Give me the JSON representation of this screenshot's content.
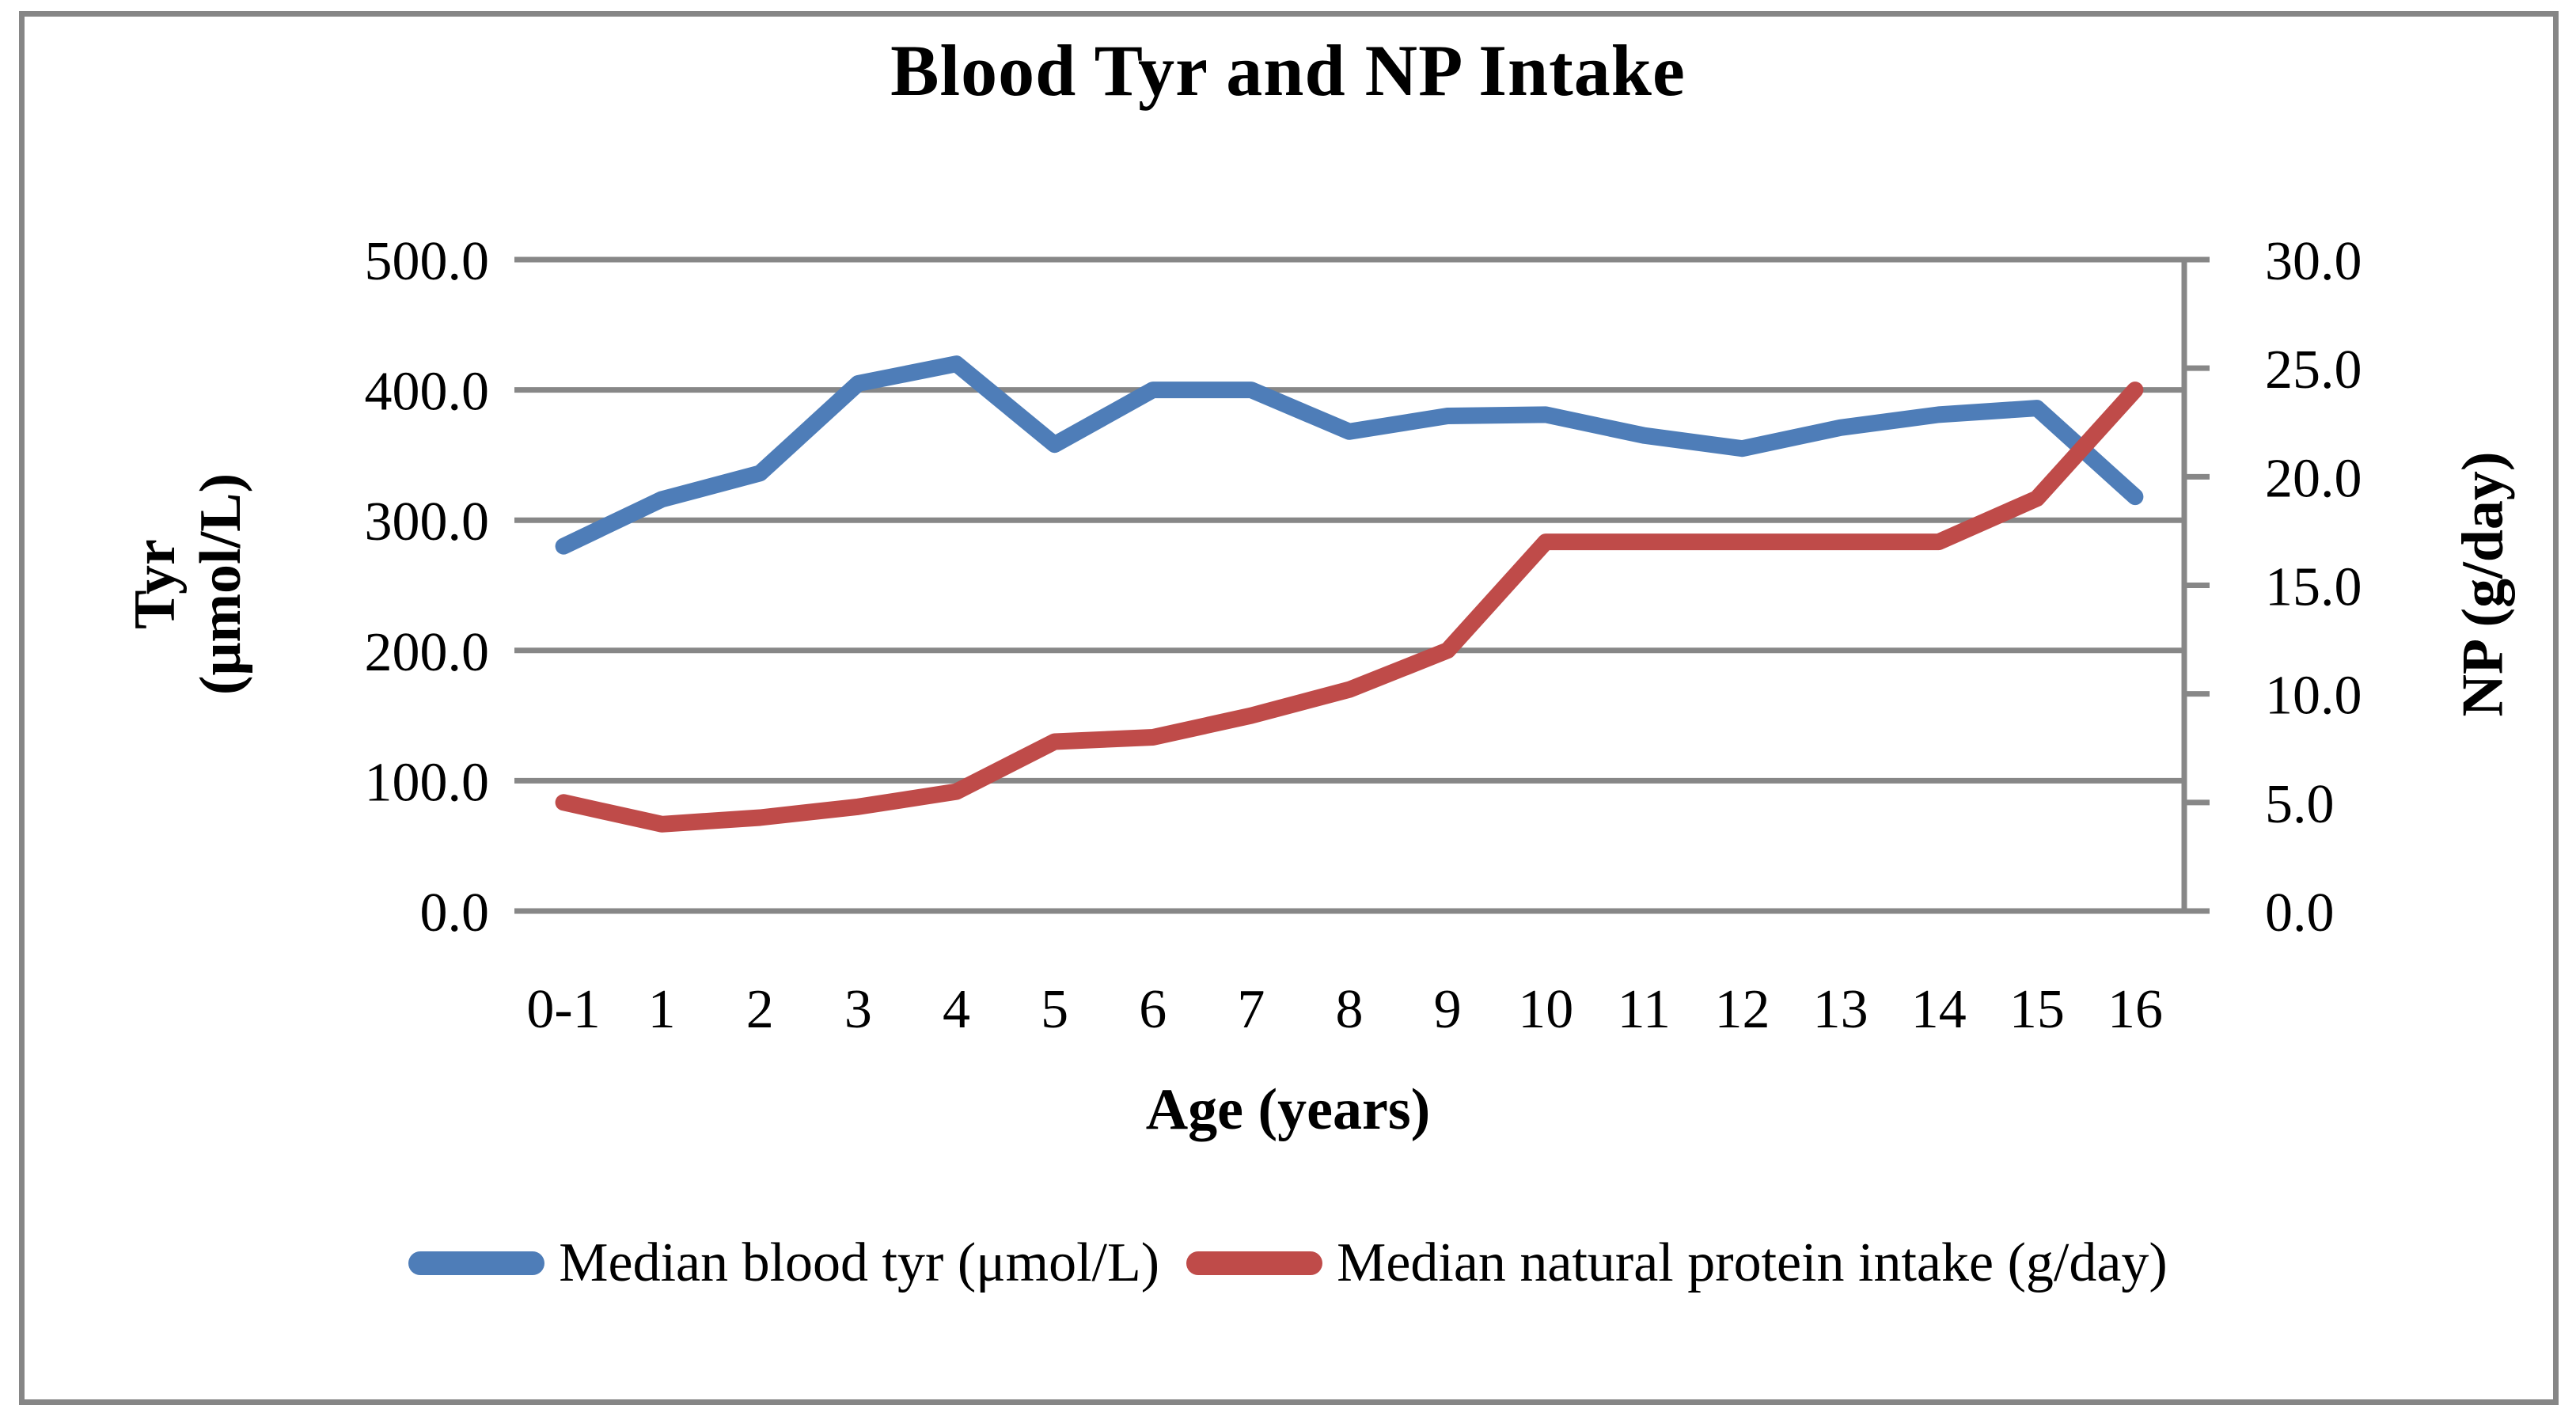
{
  "title": "Blood Tyr and NP Intake",
  "colors": {
    "background": "#ffffff",
    "border": "#868686",
    "gridline": "#878787",
    "axis": "#878787",
    "text": "#000000",
    "blue_series": "#4E7DB8",
    "red_series": "#BF4B49"
  },
  "chart_data": {
    "type": "line",
    "title": "Blood Tyr and NP Intake",
    "categories": [
      "0-1",
      "1",
      "2",
      "3",
      "4",
      "5",
      "6",
      "7",
      "8",
      "9",
      "10",
      "11",
      "12",
      "13",
      "14",
      "15",
      "16"
    ],
    "series": [
      {
        "name": "Median blood tyr (μmol/L)",
        "axis": "left",
        "color": "#4E7DB8",
        "values": [
          280,
          316,
          336,
          405,
          420,
          358,
          400,
          400,
          368,
          380,
          381,
          365,
          355,
          371,
          381,
          386,
          318
        ]
      },
      {
        "name": "Median natural protein intake (g/day)",
        "axis": "right",
        "color": "#BF4B49",
        "values": [
          5.0,
          4.0,
          4.3,
          4.8,
          5.5,
          7.8,
          8.0,
          9.0,
          10.2,
          12.0,
          17.0,
          17.0,
          17.0,
          17.0,
          17.0,
          19.0,
          24.0
        ]
      }
    ],
    "left_axis": {
      "title_line1": "Tyr",
      "title_line2": "(μmol/L)",
      "min": 0,
      "max": 500,
      "tick_step": 100,
      "tick_labels_top_to_bottom": [
        "500.0",
        "400.0",
        "300.0",
        "200.0",
        "100.0",
        "0.0"
      ]
    },
    "right_axis": {
      "title": "NP (g/day)",
      "min": 0,
      "max": 30,
      "tick_step": 5,
      "tick_labels_top_to_bottom": [
        "30.0",
        "25.0",
        "20.0",
        "15.0",
        "10.0",
        "5.0",
        "0.0"
      ]
    },
    "x_axis": {
      "title": "Age (years)"
    },
    "grid": true,
    "legend_position": "bottom"
  }
}
